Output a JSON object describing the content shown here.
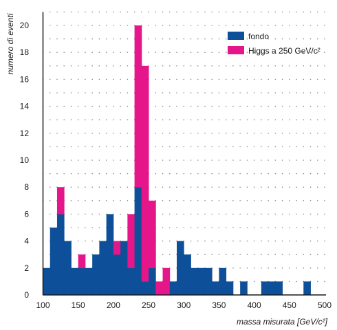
{
  "chart_data": {
    "type": "bar",
    "stacked": true,
    "xlabel": "massa misurata [GeV/c²]",
    "ylabel": "numero di eventi",
    "xlim": [
      100,
      500
    ],
    "ylim": [
      0,
      21
    ],
    "bin_width": 10,
    "x_ticks": [
      100,
      150,
      200,
      250,
      300,
      350,
      400,
      450,
      500
    ],
    "y_ticks": [
      0,
      2,
      4,
      6,
      8,
      10,
      12,
      14,
      16,
      18,
      20
    ],
    "grid": "dotted",
    "legend_position": "top-right",
    "bin_starts": [
      100,
      110,
      120,
      130,
      140,
      150,
      160,
      170,
      180,
      190,
      200,
      210,
      220,
      230,
      240,
      250,
      260,
      270,
      280,
      290,
      300,
      310,
      320,
      330,
      340,
      350,
      360,
      370,
      380,
      390,
      400,
      410,
      420,
      430,
      440,
      450,
      460,
      470,
      480,
      490
    ],
    "series": [
      {
        "name": "fondo",
        "color": "#0d4f98",
        "values": [
          2,
          5,
          6,
          4,
          2,
          2,
          2,
          3,
          4,
          6,
          3,
          4,
          2,
          8,
          1,
          2,
          0,
          0,
          1,
          4,
          3,
          2,
          2,
          2,
          1,
          2,
          1,
          0,
          1,
          0,
          0,
          1,
          1,
          1,
          0,
          0,
          0,
          1,
          0,
          0
        ]
      },
      {
        "name": "Higgs a 250 GeV/c²",
        "color": "#e4168a",
        "values": [
          0,
          0,
          2,
          0,
          0,
          1,
          0,
          0,
          0,
          0,
          1,
          0,
          4,
          12,
          16,
          5,
          1,
          2,
          0,
          0,
          0,
          0,
          0,
          0,
          0,
          0,
          0,
          0,
          0,
          0,
          0,
          0,
          0,
          0,
          0,
          0,
          0,
          0,
          0,
          0
        ]
      }
    ]
  }
}
